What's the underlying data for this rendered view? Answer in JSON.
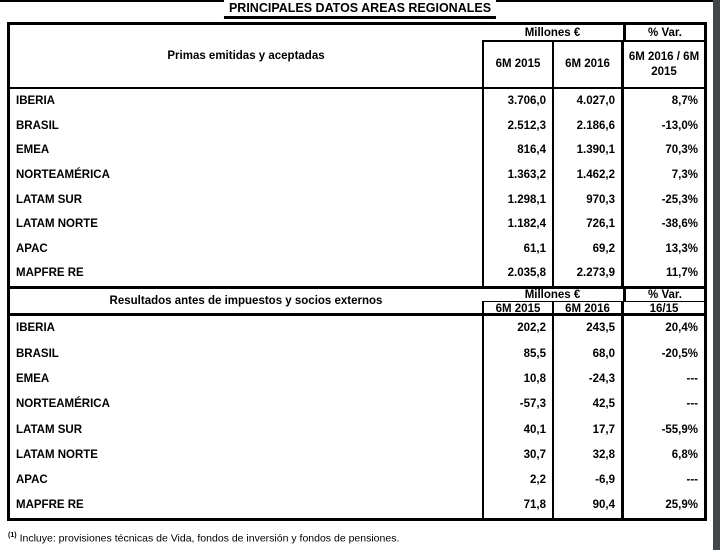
{
  "title": "PRINCIPALES DATOS AREAS REGIONALES",
  "sections": [
    {
      "header_label": "Primas emitidas y aceptadas",
      "unit_header": "Millones €",
      "var_header": "% Var.",
      "col_2015": "6M 2015",
      "col_2016": "6M 2016",
      "var_sub": "6M 2016 / 6M 2015",
      "rows": [
        {
          "label": "IBERIA",
          "y2015": "3.706,0",
          "y2016": "4.027,0",
          "var": "8,7%"
        },
        {
          "label": "BRASIL",
          "y2015": "2.512,3",
          "y2016": "2.186,6",
          "var": "-13,0%"
        },
        {
          "label": "EMEA",
          "y2015": "816,4",
          "y2016": "1.390,1",
          "var": "70,3%"
        },
        {
          "label": "NORTEAMÉRICA",
          "y2015": "1.363,2",
          "y2016": "1.462,2",
          "var": "7,3%"
        },
        {
          "label": "LATAM SUR",
          "y2015": "1.298,1",
          "y2016": "970,3",
          "var": "-25,3%"
        },
        {
          "label": "LATAM NORTE",
          "y2015": "1.182,4",
          "y2016": "726,1",
          "var": "-38,6%"
        },
        {
          "label": "APAC",
          "y2015": "61,1",
          "y2016": "69,2",
          "var": "13,3%"
        },
        {
          "label": "MAPFRE RE",
          "y2015": "2.035,8",
          "y2016": "2.273,9",
          "var": "11,7%"
        }
      ]
    },
    {
      "header_label": "Resultados antes de impuestos y socios externos",
      "unit_header": "Millones €",
      "var_header": "% Var.",
      "col_2015": "6M 2015",
      "col_2016": "6M 2016",
      "var_sub": "16/15",
      "rows": [
        {
          "label": "IBERIA",
          "y2015": "202,2",
          "y2016": "243,5",
          "var": "20,4%"
        },
        {
          "label": "BRASIL",
          "y2015": "85,5",
          "y2016": "68,0",
          "var": "-20,5%"
        },
        {
          "label": "EMEA",
          "y2015": "10,8",
          "y2016": "-24,3",
          "var": "---"
        },
        {
          "label": "NORTEAMÉRICA",
          "y2015": "-57,3",
          "y2016": "42,5",
          "var": "---"
        },
        {
          "label": "LATAM SUR",
          "y2015": "40,1",
          "y2016": "17,7",
          "var": "-55,9%"
        },
        {
          "label": "LATAM NORTE",
          "y2015": "30,7",
          "y2016": "32,8",
          "var": "6,8%"
        },
        {
          "label": "APAC",
          "y2015": "2,2",
          "y2016": "-6,9",
          "var": "---"
        },
        {
          "label": "MAPFRE RE",
          "y2015": "71,8",
          "y2016": "90,4",
          "var": "25,9%"
        }
      ]
    }
  ],
  "footnote": {
    "marker": "(1)",
    "text": "Incluye: provisiones técnicas de Vida, fondos de inversión y fondos de pensiones."
  }
}
